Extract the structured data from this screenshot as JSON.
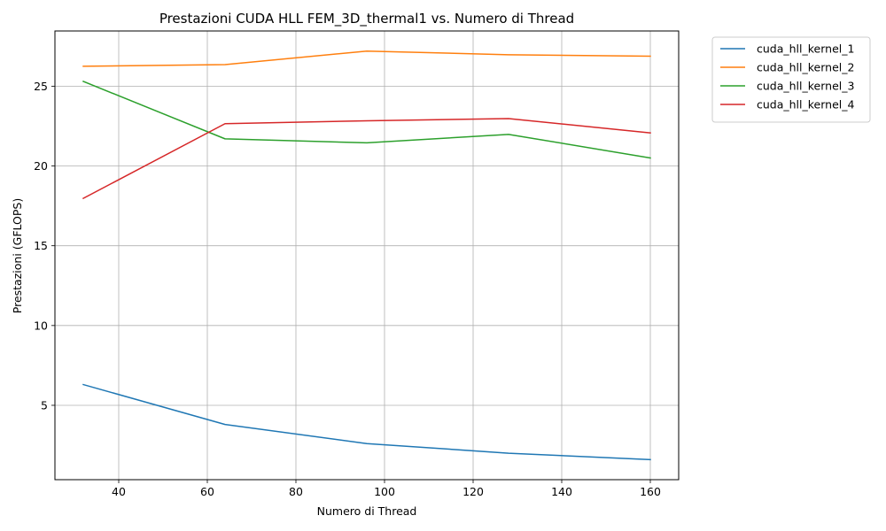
{
  "chart_data": {
    "type": "line",
    "title": "Prestazioni CUDA HLL FEM_3D_thermal1 vs. Numero di Thread",
    "xlabel": "Numero di Thread",
    "ylabel": "Prestazioni (GFLOPS)",
    "x": [
      32,
      64,
      96,
      128,
      160
    ],
    "xlim": [
      25.6,
      166.4
    ],
    "ylim": [
      0.34,
      28.46
    ],
    "xticks": [
      40,
      60,
      80,
      100,
      120,
      140,
      160
    ],
    "yticks": [
      5,
      10,
      15,
      20,
      25
    ],
    "grid": true,
    "legend_position": "outside-top-right",
    "series": [
      {
        "name": "cuda_hll_kernel_1",
        "color": "#1f77b4",
        "values": [
          6.3,
          3.8,
          2.6,
          2.0,
          1.6
        ]
      },
      {
        "name": "cuda_hll_kernel_2",
        "color": "#ff7f0e",
        "values": [
          26.25,
          26.35,
          27.2,
          26.97,
          26.88
        ]
      },
      {
        "name": "cuda_hll_kernel_3",
        "color": "#2ca02c",
        "values": [
          25.3,
          21.7,
          21.45,
          21.98,
          20.5
        ]
      },
      {
        "name": "cuda_hll_kernel_4",
        "color": "#d62728",
        "values": [
          17.97,
          22.65,
          22.83,
          22.97,
          22.07
        ]
      }
    ]
  }
}
